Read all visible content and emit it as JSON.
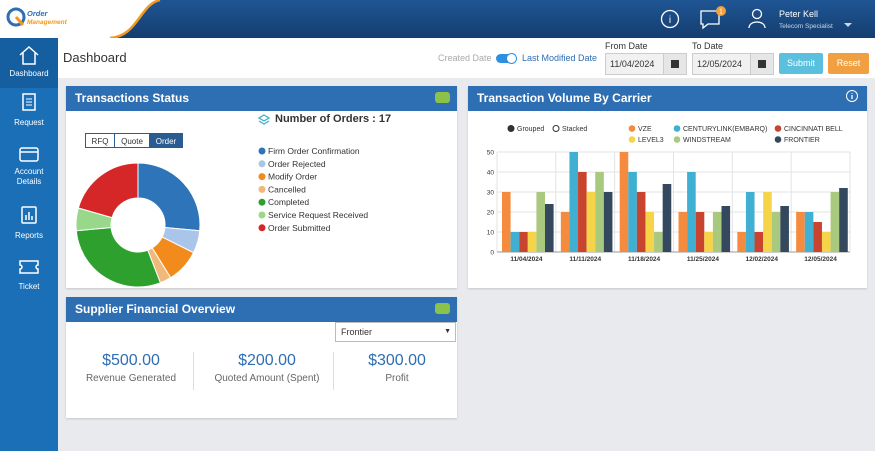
{
  "header": {
    "logo_line1": "Order",
    "logo_line2": "Management",
    "notification_count": 1,
    "user_name": "Peter Kell",
    "user_role": "Telecom Specialist"
  },
  "sidebar": {
    "items": [
      "Dashboard",
      "Request",
      "Account Details",
      "Reports",
      "Ticket"
    ]
  },
  "toolbar": {
    "page_title": "Dashboard",
    "created_date": "Created Date",
    "last_modified_date": "Last Modified Date",
    "from_label": "From Date",
    "from_value": "11/04/2024",
    "to_label": "To Date",
    "to_value": "12/05/2024",
    "submit": "Submit",
    "reset": "Reset"
  },
  "transactions_status": {
    "title": "Transactions Status",
    "tabs": [
      "RFQ",
      "Quote",
      "Order"
    ],
    "orders_label": "Number of Orders : 17"
  },
  "supplier_overview": {
    "title": "Supplier Financial Overview",
    "selected": "Frontier",
    "metrics": [
      {
        "value": "$500.00",
        "label": "Revenue Generated"
      },
      {
        "value": "$200.00",
        "label": "Quoted Amount (Spent)"
      },
      {
        "value": "$300.00",
        "label": "Profit"
      }
    ]
  },
  "chart_data": [
    {
      "type": "pie",
      "categories": [
        "Firm Order Confirmation",
        "Order Rejected",
        "Modify Order",
        "Cancelled",
        "Completed",
        "Service Request Received",
        "Order Submitted"
      ],
      "values": [
        4.5,
        1,
        1.5,
        0.5,
        5,
        1,
        3.5
      ],
      "colors": [
        "#2d75b8",
        "#a9c6ea",
        "#f28a1c",
        "#f0b87a",
        "#2ea02e",
        "#98d88a",
        "#d62728"
      ]
    },
    {
      "type": "bar",
      "title": "Transaction Volume By Carrier",
      "modes": [
        "Grouped",
        "Stacked"
      ],
      "categories": [
        "11/04/2024",
        "11/11/2024",
        "11/18/2024",
        "11/25/2024",
        "12/02/2024",
        "12/05/2024"
      ],
      "series": [
        {
          "name": "VZE",
          "color": "#f58b3f",
          "values": [
            30,
            20,
            50,
            20,
            10,
            20
          ]
        },
        {
          "name": "CENTURYLINK(EMBARQ)",
          "color": "#3fb0d1",
          "values": [
            10,
            50,
            40,
            40,
            30,
            20
          ]
        },
        {
          "name": "CINCINNATI BELL",
          "color": "#c8442f",
          "values": [
            10,
            40,
            30,
            20,
            10,
            15
          ]
        },
        {
          "name": "LEVEL3",
          "color": "#f5d44a",
          "values": [
            10,
            30,
            20,
            10,
            30,
            10
          ]
        },
        {
          "name": "WINDSTREAM",
          "color": "#a9c97f",
          "values": [
            30,
            40,
            10,
            20,
            20,
            30
          ]
        },
        {
          "name": "FRONTIER",
          "color": "#34495e",
          "values": [
            24,
            30,
            34,
            23,
            23,
            32
          ]
        }
      ],
      "ylim": [
        0,
        50
      ],
      "yticks": [
        0,
        10,
        20,
        30,
        40,
        50
      ],
      "grid": true
    }
  ]
}
